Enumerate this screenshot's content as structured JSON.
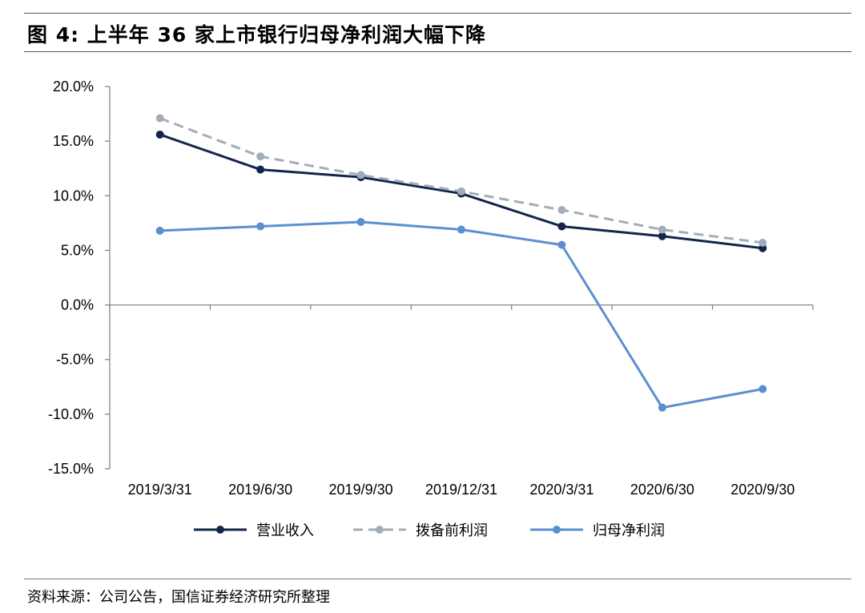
{
  "figure": {
    "title": "图 4:  上半年 36 家上市银行归母净利润大幅下降",
    "source": "资料来源：公司公告，国信证券经济研究所整理"
  },
  "chart_data": {
    "type": "line",
    "title": "",
    "xlabel": "",
    "ylabel": "",
    "categories": [
      "2019/3/31",
      "2019/6/30",
      "2019/9/30",
      "2019/12/31",
      "2020/3/31",
      "2020/6/30",
      "2020/9/30"
    ],
    "ylim": [
      -15.0,
      20.0
    ],
    "yticks": [
      20.0,
      15.0,
      10.0,
      5.0,
      0.0,
      -5.0,
      -10.0,
      -15.0
    ],
    "ytick_labels": [
      "20.0%",
      "15.0%",
      "10.0%",
      "5.0%",
      "0.0%",
      "-5.0%",
      "-10.0%",
      "-15.0%"
    ],
    "grid": false,
    "legend_position": "bottom",
    "series": [
      {
        "name": "营业收入",
        "values": [
          15.6,
          12.4,
          11.7,
          10.2,
          7.2,
          6.3,
          5.2
        ],
        "color": "#12264a",
        "dash": false
      },
      {
        "name": "拨备前利润",
        "values": [
          17.1,
          13.6,
          11.9,
          10.4,
          8.7,
          6.9,
          5.7
        ],
        "color": "#a3adba",
        "dash": true
      },
      {
        "name": "归母净利润",
        "values": [
          6.8,
          7.2,
          7.6,
          6.9,
          5.5,
          -9.4,
          -7.7
        ],
        "color": "#5b8fd0",
        "dash": false
      }
    ]
  }
}
